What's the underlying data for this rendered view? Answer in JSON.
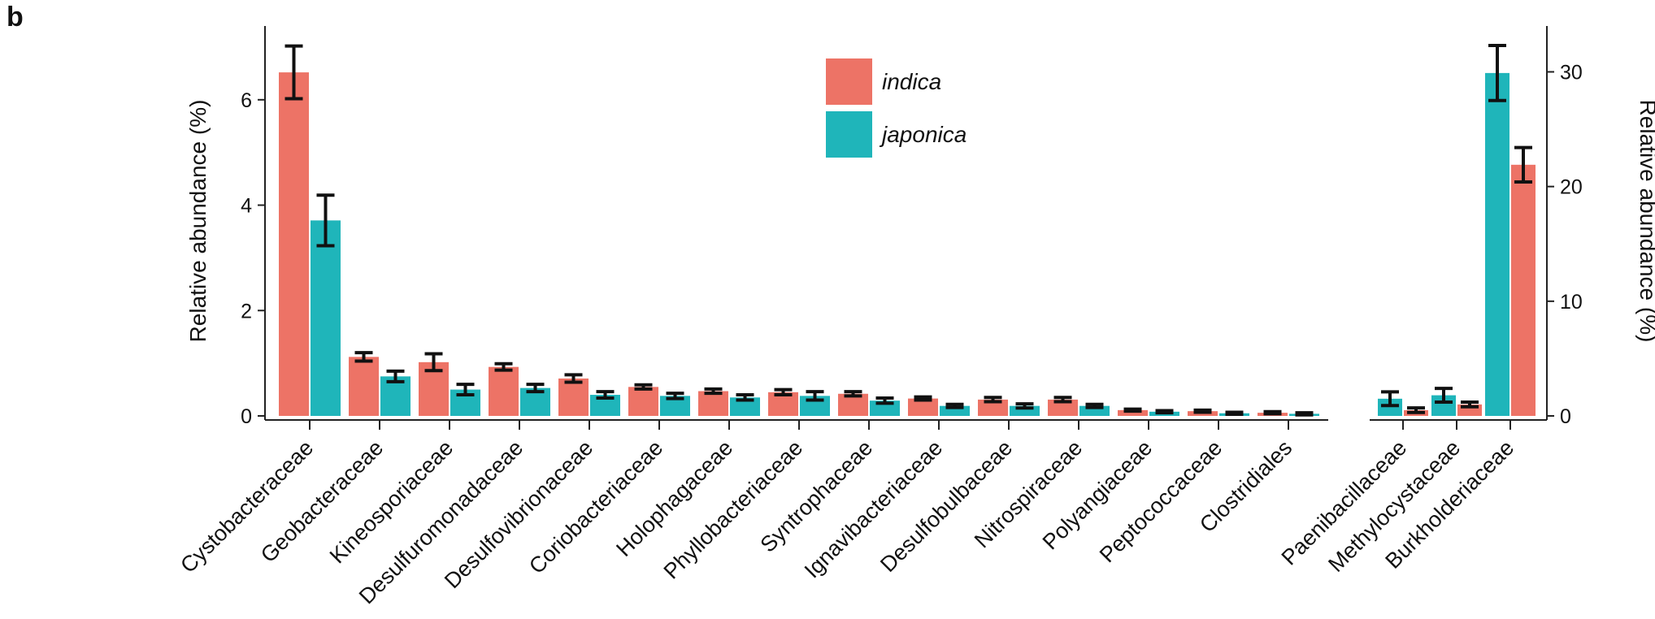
{
  "panel_label": "b",
  "chart_data": {
    "type": "bar",
    "legend": {
      "placement": "top-center",
      "entries": [
        {
          "name": "indica",
          "color": "#ed7366"
        },
        {
          "name": "japonica",
          "color": "#1fb5ba"
        }
      ]
    },
    "series": [
      {
        "name": "indica",
        "color": "#ed7366"
      },
      {
        "name": "japonica",
        "color": "#1fb5ba"
      }
    ],
    "left_panel": {
      "ylabel": "Relative abundance (%)",
      "ylim": [
        0,
        7.4
      ],
      "yticks": [
        "0",
        "2",
        "4",
        "6"
      ],
      "categories": [
        "Cystobacteraceae",
        "Geobacteraceae",
        "Kineosporiaceae",
        "Desulfuromonadaceae",
        "Desulfovibrionaceae",
        "Coriobacteriaceae",
        "Holophagaceae",
        "Phyllobacteriaceae",
        "Syntrophaceae",
        "Ignavibacteriaceae",
        "Desulfobulbaceae",
        "Nitrospiraceae",
        "Polyangiaceae",
        "Peptococcaceae",
        "Clostridiales"
      ],
      "indica": [
        6.52,
        1.12,
        1.02,
        0.93,
        0.71,
        0.55,
        0.47,
        0.45,
        0.42,
        0.33,
        0.31,
        0.31,
        0.11,
        0.09,
        0.06
      ],
      "indica_err": [
        0.5,
        0.08,
        0.16,
        0.06,
        0.07,
        0.04,
        0.04,
        0.05,
        0.04,
        0.03,
        0.04,
        0.04,
        0.02,
        0.02,
        0.02
      ],
      "japonica": [
        3.71,
        0.75,
        0.5,
        0.53,
        0.4,
        0.38,
        0.35,
        0.38,
        0.29,
        0.19,
        0.19,
        0.19,
        0.08,
        0.05,
        0.04
      ],
      "japonica_err": [
        0.48,
        0.1,
        0.1,
        0.07,
        0.06,
        0.05,
        0.05,
        0.08,
        0.05,
        0.03,
        0.04,
        0.03,
        0.02,
        0.02,
        0.02
      ]
    },
    "right_panel": {
      "ylabel": "Relative abundance (%)",
      "ylim": [
        0,
        34
      ],
      "yticks": [
        "0",
        "10",
        "20",
        "30"
      ],
      "categories": [
        "Paenibacillaceae",
        "Methylocystaceae",
        "Burkholderiaceae"
      ],
      "order": [
        "japonica-first",
        "japonica-first",
        "japonica-first"
      ],
      "indica": [
        0.5,
        1.0,
        21.9
      ],
      "indica_err": [
        0.2,
        0.2,
        1.5
      ],
      "japonica": [
        1.5,
        1.8,
        29.9
      ],
      "japonica_err": [
        0.6,
        0.6,
        2.4
      ]
    }
  }
}
